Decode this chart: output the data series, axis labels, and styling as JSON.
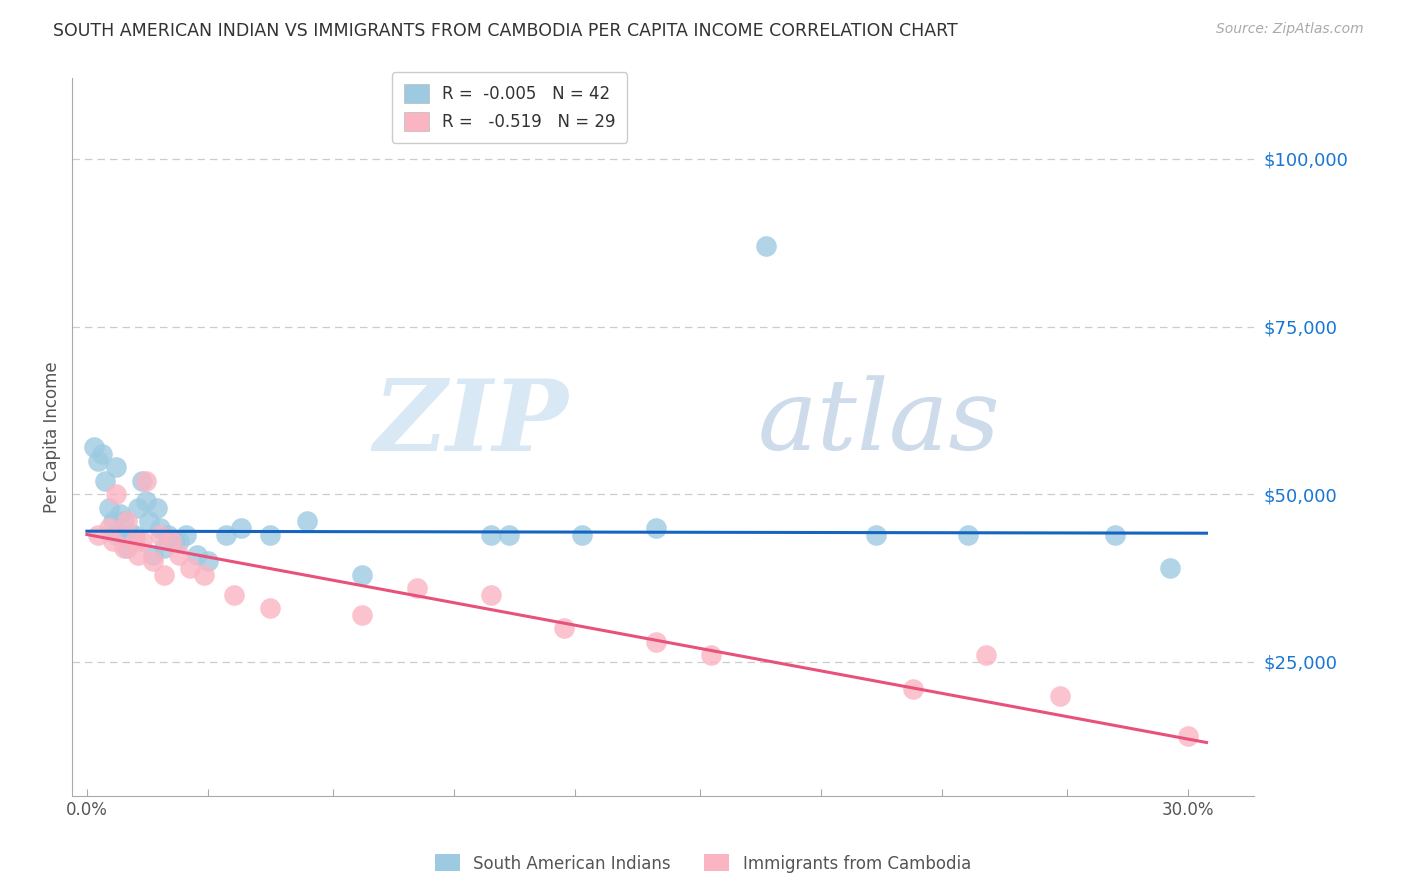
{
  "title": "SOUTH AMERICAN INDIAN VS IMMIGRANTS FROM CAMBODIA PER CAPITA INCOME CORRELATION CHART",
  "source": "Source: ZipAtlas.com",
  "ylabel": "Per Capita Income",
  "ytick_labels": [
    "$25,000",
    "$50,000",
    "$75,000",
    "$100,000"
  ],
  "ytick_vals": [
    25000,
    50000,
    75000,
    100000
  ],
  "xtick_labels": [
    "0.0%",
    "",
    "",
    "",
    "",
    "",
    "",
    "",
    "",
    "30.0%"
  ],
  "xtick_vals": [
    0.0,
    0.033,
    0.067,
    0.1,
    0.133,
    0.167,
    0.2,
    0.233,
    0.267,
    0.3
  ],
  "ylim": [
    5000,
    112000
  ],
  "xlim": [
    -0.004,
    0.318
  ],
  "legend_entry1": "R =  -0.005   N = 42",
  "legend_entry2": "R =   -0.519   N = 29",
  "legend_label1": "South American Indians",
  "legend_label2": "Immigrants from Cambodia",
  "color_blue": "#9ecae1",
  "color_pink": "#fbb4c2",
  "color_blue_line": "#1565c0",
  "color_pink_line": "#e8527a",
  "watermark_zip": "ZIP",
  "watermark_atlas": "atlas",
  "blue_x": [
    0.002,
    0.003,
    0.004,
    0.005,
    0.006,
    0.007,
    0.008,
    0.008,
    0.009,
    0.01,
    0.01,
    0.011,
    0.012,
    0.013,
    0.014,
    0.015,
    0.016,
    0.017,
    0.018,
    0.019,
    0.02,
    0.021,
    0.022,
    0.024,
    0.025,
    0.027,
    0.03,
    0.033,
    0.038,
    0.042,
    0.05,
    0.06,
    0.075,
    0.11,
    0.115,
    0.135,
    0.155,
    0.185,
    0.215,
    0.24,
    0.28,
    0.295
  ],
  "blue_y": [
    57000,
    55000,
    56000,
    52000,
    48000,
    46000,
    54000,
    44000,
    47000,
    44000,
    46000,
    42000,
    44000,
    44000,
    48000,
    52000,
    49000,
    46000,
    41000,
    48000,
    45000,
    42000,
    44000,
    43000,
    43000,
    44000,
    41000,
    40000,
    44000,
    45000,
    44000,
    46000,
    38000,
    44000,
    44000,
    44000,
    45000,
    87000,
    44000,
    44000,
    44000,
    39000
  ],
  "pink_x": [
    0.003,
    0.006,
    0.007,
    0.008,
    0.01,
    0.011,
    0.013,
    0.014,
    0.015,
    0.016,
    0.018,
    0.02,
    0.021,
    0.023,
    0.025,
    0.028,
    0.032,
    0.04,
    0.05,
    0.075,
    0.09,
    0.11,
    0.13,
    0.155,
    0.17,
    0.225,
    0.245,
    0.265,
    0.3
  ],
  "pink_y": [
    44000,
    45000,
    43000,
    50000,
    42000,
    46000,
    43000,
    41000,
    43000,
    52000,
    40000,
    44000,
    38000,
    43000,
    41000,
    39000,
    38000,
    35000,
    33000,
    32000,
    36000,
    35000,
    30000,
    28000,
    26000,
    21000,
    26000,
    20000,
    14000
  ],
  "blue_trend_x": [
    0.0,
    0.305
  ],
  "blue_trend_y": [
    44500,
    44200
  ],
  "pink_trend_x": [
    0.0,
    0.305
  ],
  "pink_trend_y": [
    44000,
    13000
  ]
}
